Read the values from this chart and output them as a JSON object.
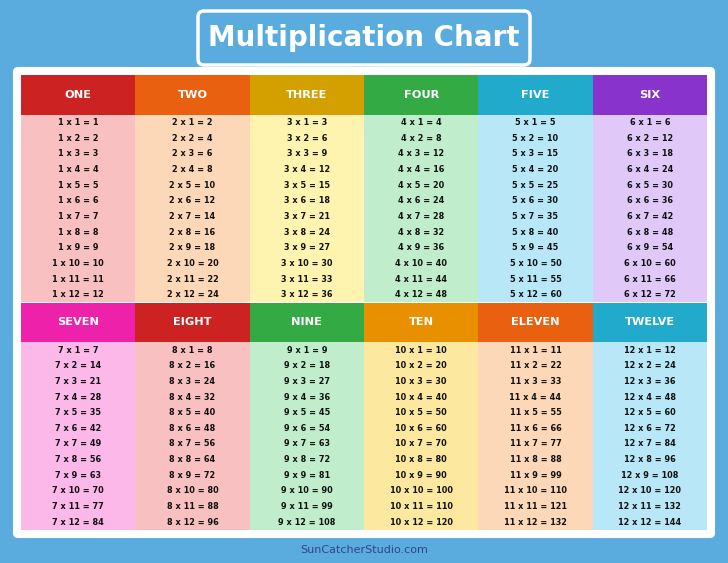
{
  "title": "Multiplication Chart",
  "background_color": "#5aacde",
  "watermark": "SunCatcherStudio.com",
  "tables": [
    {
      "number": 1,
      "name": "ONE",
      "header_color": "#cc2222",
      "body_color": "#f8c0c0"
    },
    {
      "number": 2,
      "name": "TWO",
      "header_color": "#e86010",
      "body_color": "#fdd8b8"
    },
    {
      "number": 3,
      "name": "THREE",
      "header_color": "#d4a000",
      "body_color": "#fef4b0"
    },
    {
      "number": 4,
      "name": "FOUR",
      "header_color": "#33aa44",
      "body_color": "#c0eecc"
    },
    {
      "number": 5,
      "name": "FIVE",
      "header_color": "#22aacc",
      "body_color": "#b8e8f8"
    },
    {
      "number": 6,
      "name": "SIX",
      "header_color": "#8833cc",
      "body_color": "#e0c8f8"
    },
    {
      "number": 7,
      "name": "SEVEN",
      "header_color": "#ee22aa",
      "body_color": "#fbb8e8"
    },
    {
      "number": 8,
      "name": "EIGHT",
      "header_color": "#cc2222",
      "body_color": "#f8c0c0"
    },
    {
      "number": 9,
      "name": "NINE",
      "header_color": "#33aa44",
      "body_color": "#c0eecc"
    },
    {
      "number": 10,
      "name": "TEN",
      "header_color": "#e89000",
      "body_color": "#fde8a0"
    },
    {
      "number": 11,
      "name": "ELEVEN",
      "header_color": "#e86010",
      "body_color": "#fdd8b8"
    },
    {
      "number": 12,
      "name": "TWELVE",
      "header_color": "#22aacc",
      "body_color": "#b8e8f8"
    }
  ],
  "n_cols": 6,
  "n_rows": 2,
  "n_entries": 12,
  "fig_width": 7.28,
  "fig_height": 5.63,
  "dpi": 100
}
